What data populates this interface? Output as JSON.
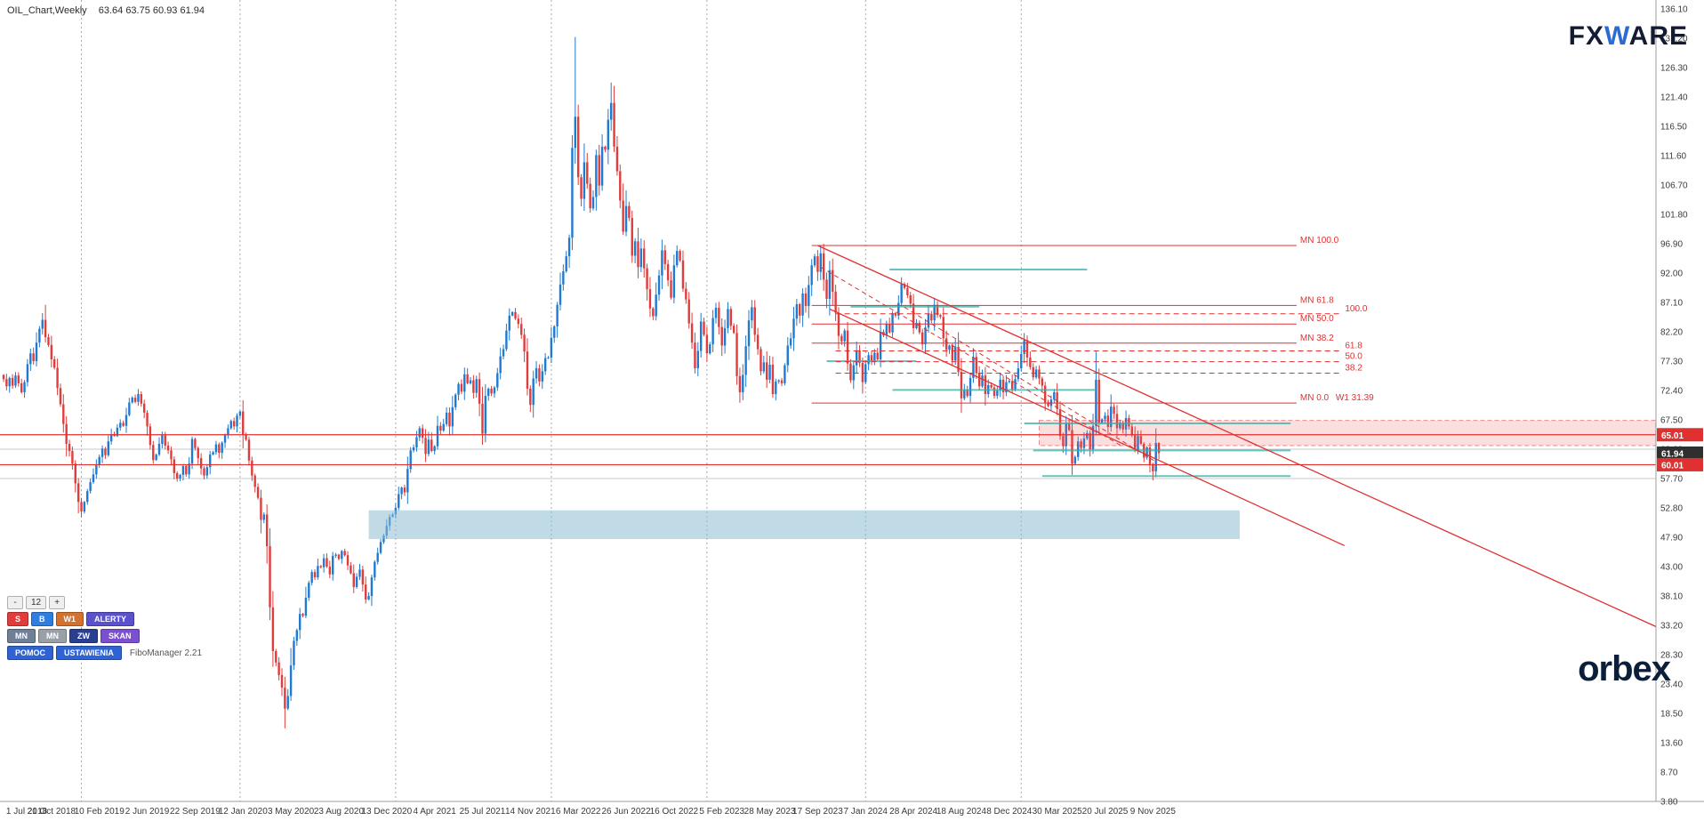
{
  "window": {
    "title_symbol": "OIL_Chart,Weekly",
    "ohlc": "63.64 63.75 60.93 61.94"
  },
  "branding": {
    "fxware": {
      "fx": "FX",
      "w": "W",
      "are": "ARE",
      "color_dark": "#131c33",
      "color_blue": "#2b6bd4"
    },
    "orbex": {
      "text": "orbex",
      "color": "#0b1f3a"
    }
  },
  "panel": {
    "zoom": [
      {
        "label": "-"
      },
      {
        "label": "12"
      },
      {
        "label": "+"
      }
    ],
    "row1": [
      {
        "label": "S",
        "bg": "#e03c3c"
      },
      {
        "label": "B",
        "bg": "#2f7de0"
      },
      {
        "label": "W1",
        "bg": "#d2722e"
      },
      {
        "label": "ALERTY",
        "bg": "#5a52cc"
      }
    ],
    "row2": [
      {
        "label": "MN",
        "bg": "#6f7f96"
      },
      {
        "label": "MN",
        "bg": "#9aa0a8"
      },
      {
        "label": "ZW",
        "bg": "#2a3f8f"
      },
      {
        "label": "SKAN",
        "bg": "#7b4fd0"
      }
    ],
    "row3": [
      {
        "label": "POMOC",
        "bg": "#2f63d4"
      },
      {
        "label": "USTAWIENIA",
        "bg": "#2f63d4"
      }
    ],
    "version": "FiboManager 2.21"
  },
  "price_tags": [
    {
      "text": "65.01",
      "price": 65.01,
      "bg": "#e03131",
      "fg": "#ffffff"
    },
    {
      "text": "61.94",
      "price": 61.94,
      "bg": "#2f2f2f",
      "fg": "#ffffff"
    },
    {
      "text": "60.01",
      "price": 60.01,
      "bg": "#e03131",
      "fg": "#ffffff"
    }
  ],
  "colors": {
    "bull": "#1f7ad1",
    "bear": "#e03c3c",
    "fib": "#e03131",
    "teal": "#35b0a8",
    "separator": "#a8a8a8",
    "axis_text": "#3a3a3a",
    "gray_level": "#c8c8c8"
  },
  "chart_data": {
    "type": "candlestick",
    "symbol": "OIL_Chart",
    "timeframe": "Weekly",
    "title": "OIL_Chart,Weekly",
    "current_candle_ohlc": {
      "open": 63.64,
      "high": 63.75,
      "low": 60.93,
      "close": 61.94
    },
    "y_axis": {
      "min": 3.8,
      "max": 136.1,
      "tick_step": 4.9,
      "ticks": [
        "136.10",
        "131.20",
        "126.30",
        "121.40",
        "116.50",
        "111.60",
        "106.70",
        "101.80",
        "96.90",
        "92.00",
        "87.10",
        "82.20",
        "77.30",
        "72.40",
        "67.50",
        "62.60",
        "57.70",
        "52.80",
        "47.90",
        "43.00",
        "38.10",
        "33.20",
        "28.30",
        "23.40",
        "18.50",
        "13.60",
        "8.70",
        "3.80"
      ]
    },
    "x_axis": {
      "weeks_per_label": 16,
      "labels": [
        "1 Jul 2018",
        "21 Oct 2018",
        "10 Feb 2019",
        "2 Jun 2019",
        "22 Sep 2019",
        "12 Jan 2020",
        "3 May 2020",
        "23 Aug 2020",
        "13 Dec 2020",
        "4 Apr 2021",
        "25 Jul 2021",
        "14 Nov 2021",
        "6 Mar 2022",
        "26 Jun 2022",
        "16 Oct 2022",
        "5 Feb 2023",
        "28 May 2023",
        "17 Sep 2023",
        "7 Jan 2024",
        "28 Apr 2024",
        "18 Aug 2024",
        "8 Dec 2024",
        "30 Mar 2025",
        "20 Jul 2025",
        "9 Nov 2025"
      ]
    },
    "first_open": 75.0,
    "closes": [
      74.3,
      73.1,
      74.5,
      73.2,
      74.9,
      73.6,
      72.1,
      73.8,
      76.8,
      78.6,
      77.3,
      80.4,
      82.7,
      84.2,
      81.3,
      80.0,
      77.6,
      76.2,
      72.8,
      70.1,
      66.8,
      63.5,
      62.3,
      60.2,
      56.9,
      53.8,
      52.2,
      53.8,
      55.6,
      57.1,
      58.4,
      60.0,
      61.3,
      62.7,
      61.6,
      63.9,
      65.1,
      64.8,
      66.2,
      67.0,
      66.5,
      68.3,
      70.4,
      71.2,
      70.5,
      71.8,
      70.2,
      68.7,
      66.4,
      63.3,
      60.8,
      61.7,
      63.5,
      64.9,
      63.2,
      62.4,
      60.9,
      58.6,
      57.7,
      58.3,
      59.8,
      58.4,
      60.2,
      64.3,
      62.8,
      61.1,
      59.4,
      58.2,
      59.6,
      61.7,
      62.1,
      63.4,
      62.0,
      63.7,
      64.9,
      66.1,
      67.3,
      66.4,
      68.2,
      68.9,
      65.0,
      64.2,
      60.7,
      58.2,
      56.3,
      54.5,
      50.8,
      51.7,
      46.4,
      36.2,
      28.9,
      27.0,
      24.9,
      22.8,
      19.3,
      21.4,
      26.5,
      30.6,
      32.4,
      35.1,
      34.8,
      37.8,
      40.3,
      42.1,
      41.2,
      43.1,
      42.9,
      44.4,
      43.0,
      41.7,
      44.8,
      45.0,
      44.3,
      45.6,
      44.9,
      43.2,
      41.9,
      39.6,
      41.3,
      42.5,
      40.0,
      37.5,
      38.1,
      41.2,
      43.8,
      45.3,
      47.1,
      48.2,
      49.8,
      51.3,
      51.7,
      52.8,
      55.1,
      56.2,
      55.4,
      59.3,
      62.4,
      62.9,
      64.6,
      66.1,
      64.5,
      61.8,
      64.2,
      62.3,
      63.1,
      66.5,
      65.7,
      66.8,
      68.7,
      66.4,
      69.6,
      71.7,
      73.5,
      72.2,
      75.1,
      73.6,
      74.1,
      72.0,
      74.3,
      70.2,
      65.2,
      71.5,
      72.7,
      71.9,
      72.9,
      75.3,
      78.1,
      79.3,
      82.4,
      84.9,
      85.5,
      84.4,
      83.5,
      81.7,
      78.9,
      72.7,
      70.0,
      74.4,
      76.1,
      73.9,
      75.6,
      77.8,
      77.9,
      81.2,
      83.1,
      86.7,
      90.1,
      92.3,
      94.8,
      97.9,
      112.9,
      118.1,
      108.0,
      104.4,
      110.5,
      106.9,
      102.8,
      104.7,
      111.7,
      106.6,
      113.1,
      112.6,
      117.6,
      120.4,
      113.1,
      109.0,
      104.1,
      98.9,
      103.2,
      101.2,
      94.9,
      97.3,
      93.0,
      96.1,
      92.8,
      89.3,
      86.1,
      84.8,
      88.4,
      91.6,
      95.8,
      93.5,
      90.8,
      87.9,
      93.3,
      95.7,
      94.1,
      89.4,
      87.6,
      83.6,
      80.4,
      76.1,
      79.0,
      83.9,
      81.7,
      78.6,
      80.1,
      84.5,
      86.2,
      83.0,
      79.9,
      82.8,
      86.0,
      83.2,
      82.0,
      74.8,
      72.1,
      75.0,
      79.8,
      84.1,
      86.3,
      81.7,
      79.3,
      75.6,
      77.1,
      74.2,
      76.7,
      71.8,
      73.9,
      74.1,
      73.6,
      76.6,
      79.9,
      81.1,
      84.4,
      86.8,
      84.9,
      88.6,
      86.5,
      90.0,
      93.3,
      94.8,
      92.2,
      95.3,
      90.9,
      87.7,
      92.5,
      88.9,
      85.4,
      81.5,
      80.6,
      82.4,
      76.9,
      74.1,
      76.6,
      79.1,
      77.0,
      73.8,
      76.8,
      78.3,
      77.3,
      78.7,
      77.6,
      82.2,
      81.6,
      83.5,
      82.1,
      85.3,
      84.9,
      87.0,
      90.2,
      89.5,
      88.3,
      86.9,
      82.8,
      83.7,
      82.1,
      80.1,
      82.9,
      85.2,
      84.1,
      86.7,
      85.0,
      84.7,
      81.1,
      79.2,
      79.9,
      77.4,
      79.7,
      75.5,
      71.1,
      72.5,
      71.5,
      74.5,
      78.0,
      75.3,
      73.1,
      74.9,
      71.8,
      73.3,
      72.9,
      71.5,
      72.4,
      74.2,
      72.1,
      73.8,
      74.0,
      72.6,
      74.3,
      76.1,
      78.5,
      80.8,
      77.9,
      76.3,
      74.6,
      75.9,
      74.4,
      73.2,
      70.4,
      69.8,
      70.9,
      72.1,
      69.3,
      64.8,
      63.1,
      66.9,
      65.8,
      60.2,
      61.3,
      63.9,
      62.8,
      64.4,
      65.3,
      62.6,
      66.5,
      74.2,
      67.0,
      67.6,
      68.2,
      66.3,
      69.7,
      68.5,
      66.1,
      67.0,
      65.9,
      67.8,
      66.4,
      64.9,
      62.4,
      64.8,
      63.5,
      61.2,
      62.9,
      60.1,
      58.9,
      63.64,
      61.94
    ],
    "wick_overrides": [
      {
        "i": 14,
        "h": 86.7
      },
      {
        "i": 94,
        "l": 16.0
      },
      {
        "i": 191,
        "h": 131.4
      },
      {
        "i": 203,
        "h": 123.8
      },
      {
        "i": 273,
        "h": 96.6
      },
      {
        "i": 300,
        "h": 91.3
      },
      {
        "i": 357,
        "l": 58.3
      },
      {
        "i": 365,
        "h": 78.9
      },
      {
        "i": 384,
        "l": 57.4
      },
      {
        "i": 386,
        "h": 63.75,
        "l": 60.93
      }
    ],
    "horizontal_levels": [
      {
        "price": 65.01,
        "tag": "65.01"
      },
      {
        "price": 60.01,
        "tag": "60.01"
      }
    ],
    "fib_monthly": {
      "x1_week": 270,
      "x2_week": 432,
      "levels": [
        {
          "label": "MN 100.0",
          "price": 96.6
        },
        {
          "label": "MN 61.8",
          "price": 86.6
        },
        {
          "label": "MN 50.0",
          "price": 83.5
        },
        {
          "label": "MN 38.2",
          "price": 80.3
        },
        {
          "label": "MN 0.0",
          "price": 70.3,
          "label2": "W1 31.39"
        }
      ]
    },
    "fib_weekly": {
      "x1_week": 278,
      "x2_week": 447,
      "levels": [
        {
          "label": "100.0",
          "price": 85.2
        },
        {
          "label": "61.8",
          "price": 79.0
        },
        {
          "label": "50.0",
          "price": 77.2
        },
        {
          "label": "38.2",
          "price": 75.3
        }
      ]
    },
    "trendlines": [
      {
        "w1": 272,
        "p1": 96.6,
        "w2": 552,
        "p2": 33.0
      },
      {
        "w1": 276,
        "p1": 86.0,
        "w2": 448,
        "p2": 46.5
      }
    ],
    "dashed_trendlines": [
      {
        "w1": 273,
        "p1": 93.0,
        "w2": 374,
        "p2": 63.0
      },
      {
        "w1": 301,
        "p1": 86.3,
        "w2": 385,
        "p2": 60.5
      }
    ],
    "zones": [
      {
        "name": "resistance-zone",
        "price_top": 67.4,
        "price_bottom": 63.2,
        "x1_week": 346,
        "x2_week": 552,
        "fill": "rgba(235,90,90,0.20)",
        "stroke": "rgba(224,49,49,0.55)"
      },
      {
        "name": "support-zone",
        "price_top": 52.4,
        "price_bottom": 47.6,
        "x1_week": 122,
        "x2_week": 413,
        "fill": "rgba(140,190,210,0.55)",
        "stroke": "none"
      }
    ],
    "teal_segments": [
      {
        "price": 92.6,
        "x1_week": 296,
        "x2_week": 362
      },
      {
        "price": 86.4,
        "x1_week": 283,
        "x2_week": 326
      },
      {
        "price": 77.3,
        "x1_week": 275,
        "x2_week": 305
      },
      {
        "price": 72.5,
        "x1_week": 297,
        "x2_week": 365
      },
      {
        "price": 66.9,
        "x1_week": 341,
        "x2_week": 430
      },
      {
        "price": 62.4,
        "x1_week": 344,
        "x2_week": 430
      },
      {
        "price": 58.1,
        "x1_week": 347,
        "x2_week": 430
      }
    ],
    "gray_levels": [
      62.6,
      57.7
    ],
    "year_separator_weeks": [
      26,
      79,
      131,
      183,
      235,
      288,
      340
    ]
  }
}
